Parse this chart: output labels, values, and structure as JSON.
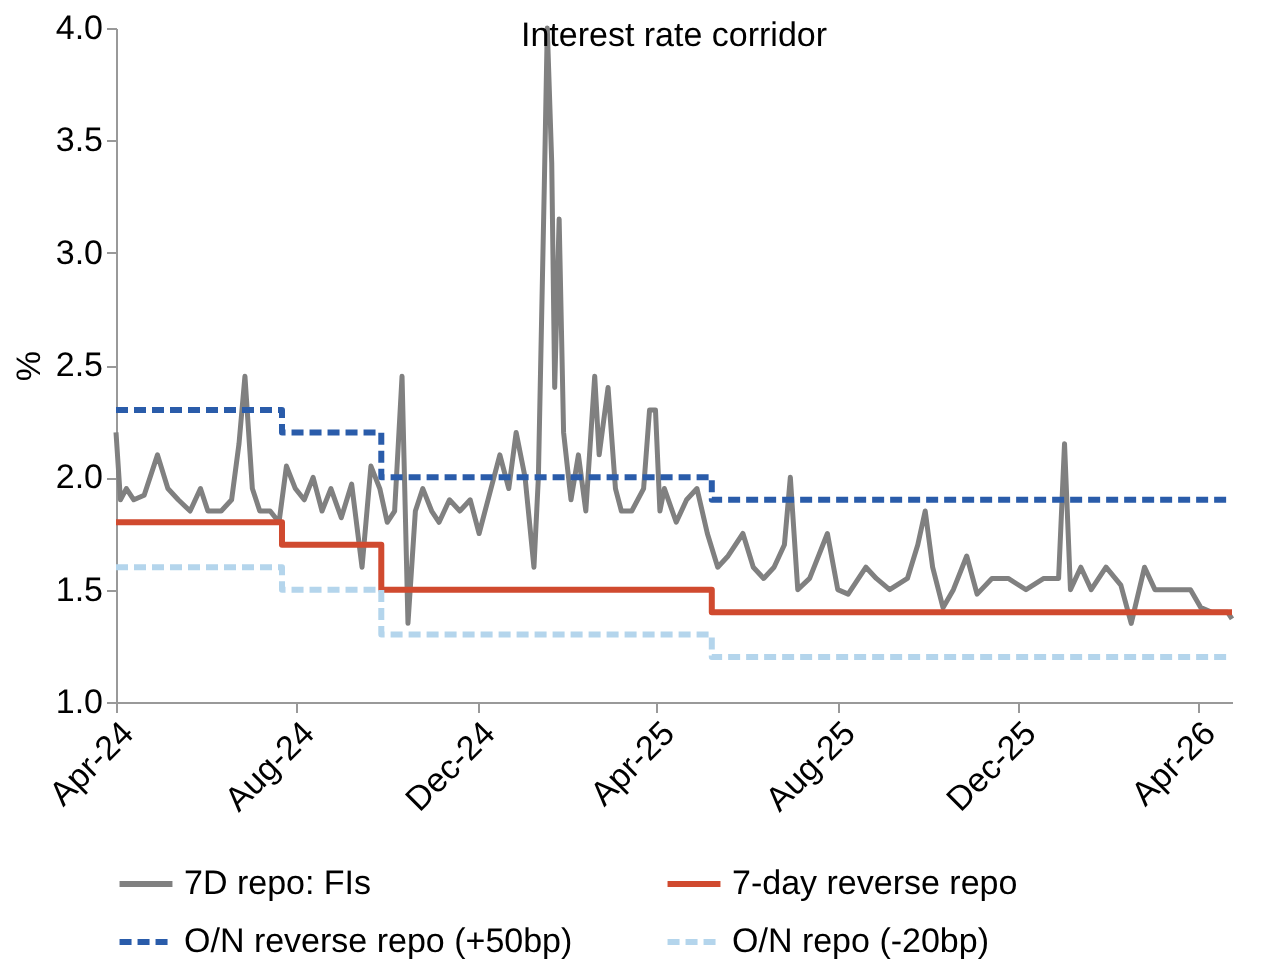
{
  "chart_data": {
    "type": "line",
    "title": "Interest rate corridor",
    "ylabel": "%",
    "xlim": [
      "2024-04-01",
      "2026-04-24"
    ],
    "xticks": [
      {
        "value": "2024-04-01",
        "label": "Apr-24"
      },
      {
        "value": "2024-08-01",
        "label": "Aug-24"
      },
      {
        "value": "2024-12-01",
        "label": "Dec-24"
      },
      {
        "value": "2025-04-01",
        "label": "Apr-25"
      },
      {
        "value": "2025-08-01",
        "label": "Aug-25"
      },
      {
        "value": "2025-12-01",
        "label": "Dec-25"
      },
      {
        "value": "2026-04-01",
        "label": "Apr-26"
      }
    ],
    "ylim": [
      1,
      4
    ],
    "yticks": [
      {
        "value": 1,
        "label": "1.0"
      },
      {
        "value": 1.5,
        "label": "1.5"
      },
      {
        "value": 2,
        "label": "2.0"
      },
      {
        "value": 2.5,
        "label": "2.5"
      },
      {
        "value": 3,
        "label": "3.0"
      },
      {
        "value": 3.5,
        "label": "3.5"
      },
      {
        "value": 4,
        "label": "4.0"
      }
    ],
    "grid": false,
    "legend": "bottom",
    "marker": "none",
    "series": [
      {
        "name": "7D repo: FIs",
        "line_style": "solid",
        "color": "#808080",
        "x": [
          "2024-04-01",
          "2024-04-04",
          "2024-04-08",
          "2024-04-13",
          "2024-04-20",
          "2024-04-29",
          "2024-05-06",
          "2024-05-13",
          "2024-05-21",
          "2024-05-28",
          "2024-06-02",
          "2024-06-11",
          "2024-06-18",
          "2024-06-23",
          "2024-06-27",
          "2024-07-02",
          "2024-07-07",
          "2024-07-14",
          "2024-07-20",
          "2024-07-25",
          "2024-07-31",
          "2024-08-06",
          "2024-08-12",
          "2024-08-18",
          "2024-08-24",
          "2024-08-31",
          "2024-09-07",
          "2024-09-14",
          "2024-09-20",
          "2024-09-26",
          "2024-10-01",
          "2024-10-06",
          "2024-10-11",
          "2024-10-15",
          "2024-10-20",
          "2024-10-25",
          "2024-10-31",
          "2024-11-05",
          "2024-11-12",
          "2024-11-19",
          "2024-11-26",
          "2024-12-02",
          "2024-12-08",
          "2024-12-16",
          "2024-12-22",
          "2024-12-27",
          "2025-01-02",
          "2025-01-08",
          "2025-01-11",
          "2025-01-15",
          "2025-01-17",
          "2025-01-20",
          "2025-01-22",
          "2025-01-25",
          "2025-01-28",
          "2025-02-02",
          "2025-02-07",
          "2025-02-12",
          "2025-02-18",
          "2025-02-21",
          "2025-02-27",
          "2025-03-04",
          "2025-03-08",
          "2025-03-15",
          "2025-03-23",
          "2025-03-27",
          "2025-03-31",
          "2025-04-03",
          "2025-04-06",
          "2025-04-14",
          "2025-04-21",
          "2025-04-28",
          "2025-05-05",
          "2025-05-12",
          "2025-05-19",
          "2025-05-29",
          "2025-06-05",
          "2025-06-12",
          "2025-06-19",
          "2025-06-26",
          "2025-06-30",
          "2025-07-05",
          "2025-07-13",
          "2025-07-25",
          "2025-08-01",
          "2025-08-08",
          "2025-08-20",
          "2025-08-27",
          "2025-09-05",
          "2025-09-17",
          "2025-09-24",
          "2025-09-29",
          "2025-10-04",
          "2025-10-11",
          "2025-10-18",
          "2025-10-27",
          "2025-11-03",
          "2025-11-13",
          "2025-11-24",
          "2025-12-06",
          "2025-12-18",
          "2025-12-28",
          "2026-01-01",
          "2026-01-05",
          "2026-01-12",
          "2026-01-19",
          "2026-01-29",
          "2026-02-08",
          "2026-02-15",
          "2026-02-24",
          "2026-03-03",
          "2026-03-15",
          "2026-03-27",
          "2026-04-03",
          "2026-04-10",
          "2026-04-21",
          "2026-04-24"
        ],
        "values": [
          2.2,
          1.9,
          1.95,
          1.9,
          1.92,
          2.1,
          1.95,
          1.9,
          1.85,
          1.95,
          1.85,
          1.85,
          1.9,
          2.15,
          2.45,
          1.95,
          1.85,
          1.85,
          1.8,
          2.05,
          1.95,
          1.9,
          2.0,
          1.85,
          1.95,
          1.82,
          1.97,
          1.6,
          2.05,
          1.95,
          1.8,
          1.85,
          2.45,
          1.35,
          1.85,
          1.95,
          1.85,
          1.8,
          1.9,
          1.85,
          1.9,
          1.75,
          1.9,
          2.1,
          1.95,
          2.2,
          2.0,
          1.6,
          2.0,
          3.3,
          4.0,
          3.4,
          2.4,
          3.15,
          2.2,
          1.9,
          2.1,
          1.85,
          2.45,
          2.1,
          2.4,
          1.95,
          1.85,
          1.85,
          1.95,
          2.3,
          2.3,
          1.85,
          1.95,
          1.8,
          1.9,
          1.95,
          1.75,
          1.6,
          1.65,
          1.75,
          1.6,
          1.55,
          1.6,
          1.7,
          2.0,
          1.5,
          1.55,
          1.75,
          1.5,
          1.48,
          1.6,
          1.55,
          1.5,
          1.55,
          1.7,
          1.85,
          1.6,
          1.42,
          1.5,
          1.65,
          1.48,
          1.55,
          1.55,
          1.5,
          1.55,
          1.55,
          2.15,
          1.5,
          1.6,
          1.5,
          1.6,
          1.52,
          1.35,
          1.6,
          1.5,
          1.5,
          1.5,
          1.42,
          1.4,
          1.4,
          1.37
        ]
      },
      {
        "name": "7-day reverse repo",
        "type": "step",
        "line_style": "solid",
        "color": "#d04a2f",
        "x": [
          "2024-04-01",
          "2024-07-22",
          "2024-09-27",
          "2025-05-08",
          "2026-04-24"
        ],
        "values": [
          1.8,
          1.7,
          1.5,
          1.4,
          1.4
        ]
      },
      {
        "name": "O/N reverse repo (+50bp)",
        "type": "step",
        "line_style": "dashed",
        "color": "#2a5caa",
        "x": [
          "2024-04-01",
          "2024-07-22",
          "2024-09-27",
          "2025-05-08",
          "2026-04-24"
        ],
        "values": [
          2.3,
          2.2,
          2.0,
          1.9,
          1.9
        ]
      },
      {
        "name": "O/N repo (-20bp)",
        "type": "step",
        "line_style": "dashed",
        "color": "#b4d5ec",
        "x": [
          "2024-04-01",
          "2024-07-22",
          "2024-09-27",
          "2025-05-08",
          "2026-04-24"
        ],
        "values": [
          1.6,
          1.5,
          1.3,
          1.2,
          1.2
        ]
      }
    ]
  }
}
